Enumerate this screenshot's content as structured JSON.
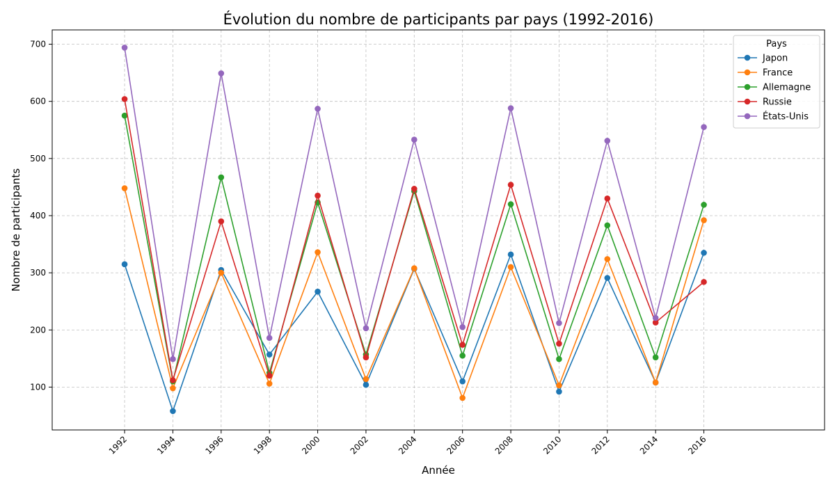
{
  "chart_data": {
    "type": "line",
    "title": "Évolution du nombre de participants par pays (1992-2016)",
    "xlabel": "Année",
    "ylabel": "Nombre de participants",
    "x": [
      "1992",
      "1994",
      "1996",
      "1998",
      "2000",
      "2002",
      "2004",
      "2006",
      "2008",
      "2010",
      "2012",
      "2014",
      "2016"
    ],
    "xlim": [
      1989,
      2021
    ],
    "ylim": [
      25,
      725
    ],
    "yticks": [
      100,
      200,
      300,
      400,
      500,
      600,
      700
    ],
    "grid": true,
    "legend_title": "Pays",
    "legend_position": "top-right",
    "series": [
      {
        "name": "Japon",
        "color": "#1f77b4",
        "values": [
          315,
          58,
          305,
          157,
          267,
          104,
          307,
          110,
          332,
          92,
          291,
          108,
          335
        ]
      },
      {
        "name": "France",
        "color": "#ff7f0e",
        "values": [
          448,
          98,
          300,
          106,
          336,
          114,
          308,
          81,
          310,
          103,
          324,
          108,
          392
        ]
      },
      {
        "name": "Allemagne",
        "color": "#2ca02c",
        "values": [
          575,
          110,
          467,
          125,
          423,
          157,
          443,
          155,
          420,
          149,
          383,
          152,
          419
        ]
      },
      {
        "name": "Russie",
        "color": "#d62728",
        "values": [
          604,
          112,
          390,
          120,
          435,
          152,
          447,
          174,
          454,
          176,
          430,
          213,
          284
        ]
      },
      {
        "name": "États-Unis",
        "color": "#9467bd",
        "values": [
          694,
          149,
          649,
          186,
          587,
          203,
          533,
          205,
          588,
          212,
          531,
          221,
          555
        ]
      }
    ]
  }
}
